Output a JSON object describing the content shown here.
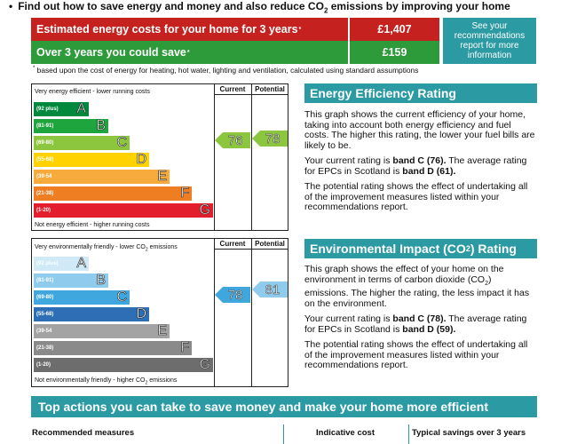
{
  "header": {
    "bullet": "•",
    "text_before": "Find out how to save energy and money and also reduce CO",
    "text_sub": "2",
    "text_after": " emissions by improving your home"
  },
  "costs": {
    "estimated_label": "Estimated energy costs for your home for 3 years",
    "estimated_marker": "*",
    "estimated_value": "£1,407",
    "savings_label": "Over 3 years you could save",
    "savings_marker": "*",
    "savings_value": "£159",
    "see_link": "See your recommendations report for more information"
  },
  "footnote": {
    "marker": "*",
    "text": " based upon the cost of energy for heating, hot water, lighting and ventilation, calculated using standard assumptions"
  },
  "energy_chart": {
    "top_label": "Very energy efficient - lower running costs",
    "bottom_label": "Not energy efficient - higher running costs",
    "current_header": "Current",
    "potential_header": "Potential",
    "current_value": "76",
    "potential_value": "78",
    "bands": [
      {
        "range": "(92 plus)",
        "letter": "A",
        "color": "#00883c"
      },
      {
        "range": "(81-91)",
        "letter": "B",
        "color": "#1fa53d"
      },
      {
        "range": "(69-80)",
        "letter": "C",
        "color": "#8cc63f"
      },
      {
        "range": "(55-68)",
        "letter": "D",
        "color": "#ffd200"
      },
      {
        "range": "(39-54",
        "letter": "E",
        "color": "#f7ab3d"
      },
      {
        "range": "(21-38)",
        "letter": "F",
        "color": "#ef7d22"
      },
      {
        "range": "(1-20)",
        "letter": "G",
        "color": "#e31d2b"
      }
    ]
  },
  "env_chart": {
    "top_label_before": "Very environmentally friendly - lower CO",
    "top_label_sub": "2",
    "top_label_after": " emissions",
    "bottom_label_before": "Not environmentally friendly - higher CO",
    "bottom_label_sub": "2",
    "bottom_label_after": " emissions",
    "current_header": "Current",
    "potential_header": "Potential",
    "current_value": "78",
    "potential_value": "81",
    "bands": [
      {
        "range": "(92 plus)",
        "letter": "A",
        "color": "#cfe9f6"
      },
      {
        "range": "(81-91)",
        "letter": "B",
        "color": "#8fcbec"
      },
      {
        "range": "(69-80)",
        "letter": "C",
        "color": "#3fa7dd"
      },
      {
        "range": "(55-68)",
        "letter": "D",
        "color": "#2e6eb5"
      },
      {
        "range": "(39-54",
        "letter": "E",
        "color": "#a3a3a3"
      },
      {
        "range": "(21-38)",
        "letter": "F",
        "color": "#8a8a8a"
      },
      {
        "range": "(1-20)",
        "letter": "G",
        "color": "#6d6d6d"
      }
    ]
  },
  "energy_info": {
    "heading": "Energy Efficiency Rating",
    "p1": "This graph shows the current efficiency of your home, taking into account both energy efficiency and fuel costs. The higher this rating, the lower your fuel bills are likely to be.",
    "p2_before": "Your current rating is ",
    "p2_bold1": "band C (76).",
    "p2_mid": " The average rating for EPCs in Scotland is ",
    "p2_bold2": "band D (61).",
    "p3": "The potential rating shows the effect of undertaking all of the improvement measures listed within your recommendations report."
  },
  "env_info": {
    "heading_before": "Environmental Impact (CO",
    "heading_sub": "2",
    "heading_after": ") Rating",
    "p1_before": "This graph shows the effect of your home on the environment in terms of carbon dioxide (CO",
    "p1_sub": "2",
    "p1_after": ") emissions. The higher the rating, the less impact it has on the environment.",
    "p2_before": "Your current rating is ",
    "p2_bold1": "band C (78).",
    "p2_mid": " The average rating for EPCs in Scotland is ",
    "p2_bold2": "band D (59).",
    "p3": "The potential rating shows the effect of undertaking all of the improvement measures listed within your recommendations report."
  },
  "actions": {
    "banner": "Top actions you can take to save money and make your home more efficient",
    "col_measures": "Recommended measures",
    "col_cost": "Indicative cost",
    "col_savings": "Typical savings over 3 years"
  },
  "colors": {
    "teal": "#2b9aa3",
    "red": "#c5211f",
    "green": "#2e9b3b"
  }
}
